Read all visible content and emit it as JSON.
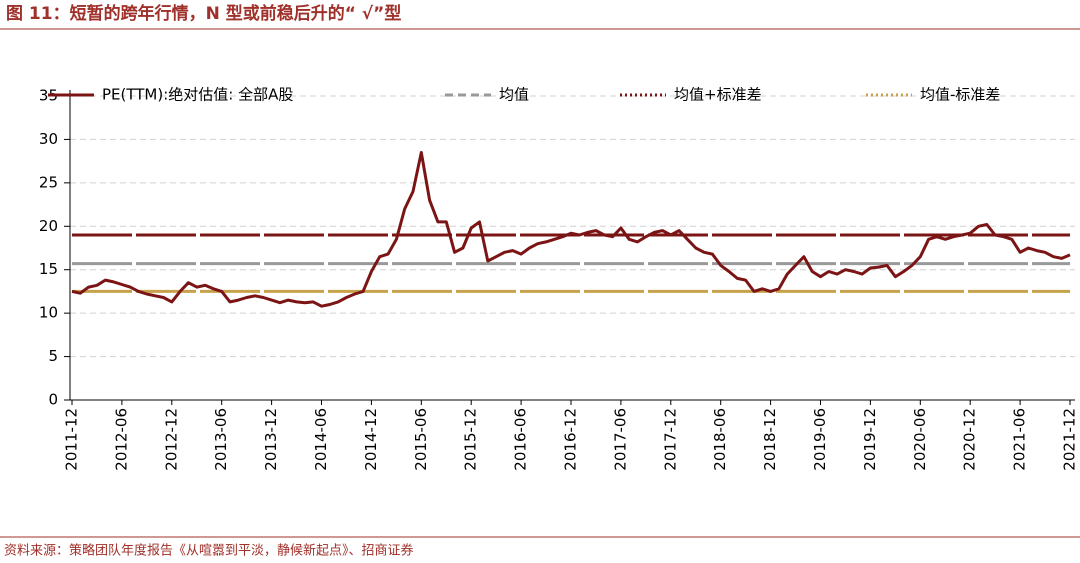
{
  "title": "图 11：短暂的跨年行情，N 型或前稳后升的“ √”型",
  "source": "资料来源：策略团队年度报告《从喧嚣到平淡，静候新起点》、招商证券",
  "chart_data": {
    "type": "line",
    "categories": [
      "2011-12",
      null,
      null,
      null,
      null,
      null,
      "2012-06",
      null,
      null,
      null,
      null,
      null,
      "2012-12",
      null,
      null,
      null,
      null,
      null,
      "2013-06",
      null,
      null,
      null,
      null,
      null,
      "2013-12",
      null,
      null,
      null,
      null,
      null,
      "2014-06",
      null,
      null,
      null,
      null,
      null,
      "2014-12",
      null,
      null,
      null,
      null,
      null,
      "2015-06",
      null,
      null,
      null,
      null,
      null,
      "2015-12",
      null,
      null,
      null,
      null,
      null,
      "2016-06",
      null,
      null,
      null,
      null,
      null,
      "2016-12",
      null,
      null,
      null,
      null,
      null,
      "2017-06",
      null,
      null,
      null,
      null,
      null,
      "2017-12",
      null,
      null,
      null,
      null,
      null,
      "2018-06",
      null,
      null,
      null,
      null,
      null,
      "2018-12",
      null,
      null,
      null,
      null,
      null,
      "2019-06",
      null,
      null,
      null,
      null,
      null,
      "2019-12",
      null,
      null,
      null,
      null,
      null,
      "2020-06",
      null,
      null,
      null,
      null,
      null,
      "2020-12",
      null,
      null,
      null,
      null,
      null,
      "2021-06",
      null,
      null,
      null,
      null,
      null,
      "2021-12"
    ],
    "series": [
      {
        "name": "PE(TTM):绝对估值: 全部A股",
        "color": "#7b1515",
        "values": [
          12.5,
          12.3,
          13.0,
          13.2,
          13.8,
          13.6,
          13.3,
          13.0,
          12.5,
          12.2,
          12.0,
          11.8,
          11.3,
          12.5,
          13.5,
          13.0,
          13.2,
          12.8,
          12.5,
          11.3,
          11.5,
          11.8,
          12.0,
          11.8,
          11.5,
          11.2,
          11.5,
          11.3,
          11.2,
          11.3,
          10.8,
          11.0,
          11.3,
          11.8,
          12.2,
          12.5,
          14.8,
          16.5,
          16.8,
          18.5,
          22.0,
          24.0,
          28.5,
          23.0,
          20.5,
          20.5,
          17.0,
          17.5,
          19.8,
          20.5,
          16.0,
          16.5,
          17.0,
          17.2,
          16.8,
          17.5,
          18.0,
          18.2,
          18.5,
          18.8,
          19.2,
          19.0,
          19.3,
          19.5,
          19.0,
          18.8,
          19.8,
          18.5,
          18.2,
          18.8,
          19.3,
          19.5,
          19.0,
          19.5,
          18.5,
          17.5,
          17.0,
          16.8,
          15.5,
          14.8,
          14.0,
          13.8,
          12.5,
          12.8,
          12.5,
          12.8,
          14.5,
          15.5,
          16.5,
          14.8,
          14.2,
          14.8,
          14.5,
          15.0,
          14.8,
          14.5,
          15.2,
          15.3,
          15.5,
          14.2,
          14.8,
          15.5,
          16.5,
          18.5,
          18.8,
          18.5,
          18.8,
          19.0,
          19.2,
          20.0,
          20.2,
          19.0,
          18.8,
          18.5,
          17.0,
          17.5,
          17.2,
          17.0,
          16.5,
          16.3,
          16.7
        ]
      }
    ],
    "hlines": [
      {
        "name": "均值",
        "color": "#999999",
        "value": 15.7,
        "legend_dash": "dashed"
      },
      {
        "name": "均值+标准差",
        "color": "#7b1515",
        "value": 19.0,
        "legend_dash": "dotted"
      },
      {
        "name": "均值-标准差",
        "color": "#c8a24a",
        "value": 12.5,
        "legend_dash": "dotted"
      }
    ],
    "ylim": [
      0,
      35
    ],
    "yticks": [
      0,
      5,
      10,
      15,
      20,
      25,
      30,
      35
    ],
    "grid": true
  }
}
